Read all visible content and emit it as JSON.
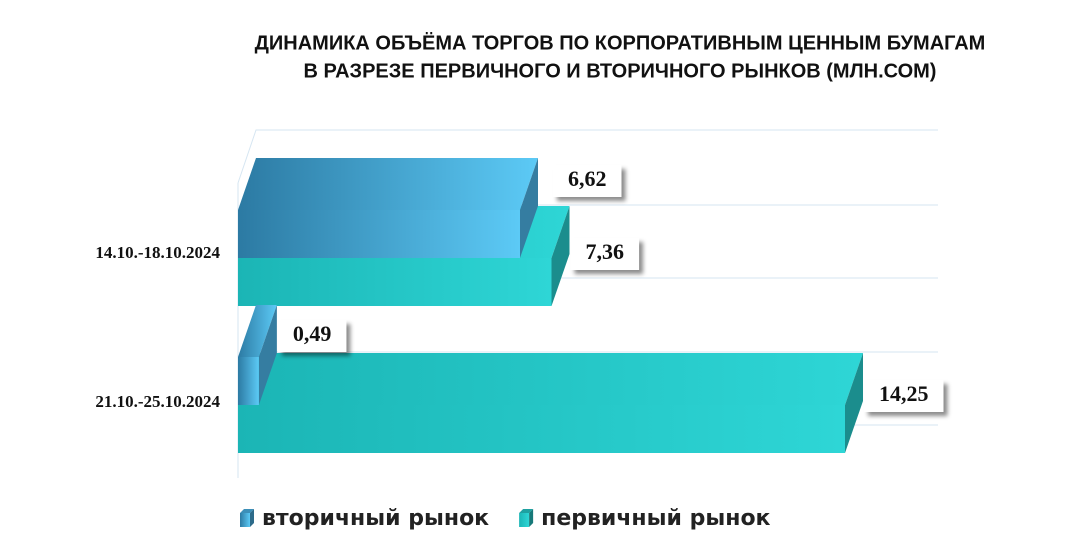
{
  "chart_data": {
    "type": "bar3d",
    "title": [
      "ДИНАМИКА ОБЪЁМА ТОРГОВ ПО КОРПОРАТИВНЫМ ЦЕННЫМ БУМАГАМ",
      "В РАЗРЕЗЕ ПЕРВИЧНОГО И ВТОРИЧНОГО РЫНКОВ  (МЛН.СОМ)"
    ],
    "categories": [
      "14.10.-18.10.2024",
      "21.10.-25.10.2024"
    ],
    "series": [
      {
        "name": "вторичный рынок",
        "color": "#4bb3e6",
        "values": [
          6.62,
          0.49
        ],
        "value_labels": [
          "6,62",
          "0,49"
        ]
      },
      {
        "name": "первичный рынок",
        "color": "#26c9c9",
        "values": [
          7.36,
          14.25
        ],
        "value_labels": [
          "7,36",
          "14,25"
        ]
      }
    ]
  }
}
